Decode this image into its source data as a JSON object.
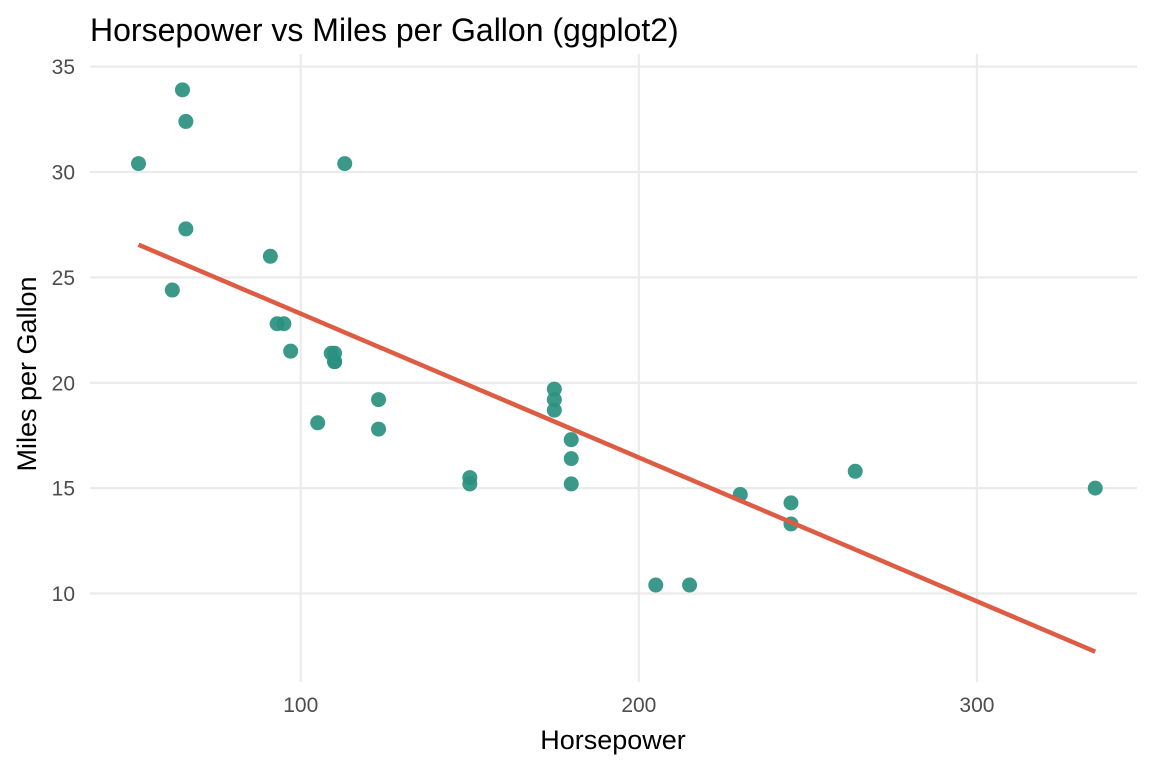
{
  "chart_data": {
    "type": "scatter",
    "title": "Horsepower vs Miles per Gallon (ggplot2)",
    "xlabel": "Horsepower",
    "ylabel": "Miles per Gallon",
    "xlim": [
      37.65,
      347.35
    ],
    "ylim": [
      5.8,
      35.6
    ],
    "x_ticks": [
      100,
      200,
      300
    ],
    "y_ticks": [
      10,
      15,
      20,
      25,
      30,
      35
    ],
    "grid": true,
    "legend": "none",
    "point_color": "#2a9080",
    "line_color": "#dd5c43",
    "points": [
      {
        "x": 110,
        "y": 21.0
      },
      {
        "x": 110,
        "y": 21.0
      },
      {
        "x": 93,
        "y": 22.8
      },
      {
        "x": 110,
        "y": 21.4
      },
      {
        "x": 175,
        "y": 18.7
      },
      {
        "x": 105,
        "y": 18.1
      },
      {
        "x": 245,
        "y": 14.3
      },
      {
        "x": 62,
        "y": 24.4
      },
      {
        "x": 95,
        "y": 22.8
      },
      {
        "x": 123,
        "y": 19.2
      },
      {
        "x": 123,
        "y": 17.8
      },
      {
        "x": 180,
        "y": 16.4
      },
      {
        "x": 180,
        "y": 17.3
      },
      {
        "x": 180,
        "y": 15.2
      },
      {
        "x": 205,
        "y": 10.4
      },
      {
        "x": 215,
        "y": 10.4
      },
      {
        "x": 230,
        "y": 14.7
      },
      {
        "x": 66,
        "y": 32.4
      },
      {
        "x": 52,
        "y": 30.4
      },
      {
        "x": 65,
        "y": 33.9
      },
      {
        "x": 97,
        "y": 21.5
      },
      {
        "x": 150,
        "y": 15.5
      },
      {
        "x": 150,
        "y": 15.2
      },
      {
        "x": 245,
        "y": 13.3
      },
      {
        "x": 175,
        "y": 19.2
      },
      {
        "x": 66,
        "y": 27.3
      },
      {
        "x": 91,
        "y": 26.0
      },
      {
        "x": 113,
        "y": 30.4
      },
      {
        "x": 264,
        "y": 15.8
      },
      {
        "x": 175,
        "y": 19.7
      },
      {
        "x": 335,
        "y": 15.0
      },
      {
        "x": 109,
        "y": 21.4
      }
    ],
    "fit_line": {
      "x": [
        52,
        335
      ],
      "y": [
        26.55,
        7.24
      ]
    }
  }
}
